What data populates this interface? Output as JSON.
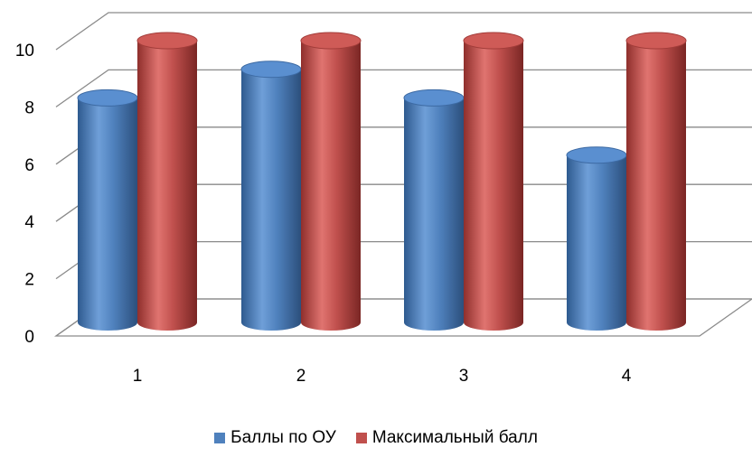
{
  "chart_data": {
    "type": "bar",
    "categories": [
      "1",
      "2",
      "3",
      "4"
    ],
    "series": [
      {
        "name": "Баллы по ОУ",
        "values": [
          8,
          9,
          8,
          6
        ],
        "color": "#4f81bd"
      },
      {
        "name": "Максимальный балл",
        "values": [
          10,
          10,
          10,
          10
        ],
        "color": "#c0504d"
      }
    ],
    "ylim": [
      0,
      10
    ],
    "yticks": [
      "0",
      "2",
      "4",
      "6",
      "8",
      "10"
    ],
    "grid": true,
    "style": "3d-cylinder",
    "legend_position": "bottom"
  }
}
